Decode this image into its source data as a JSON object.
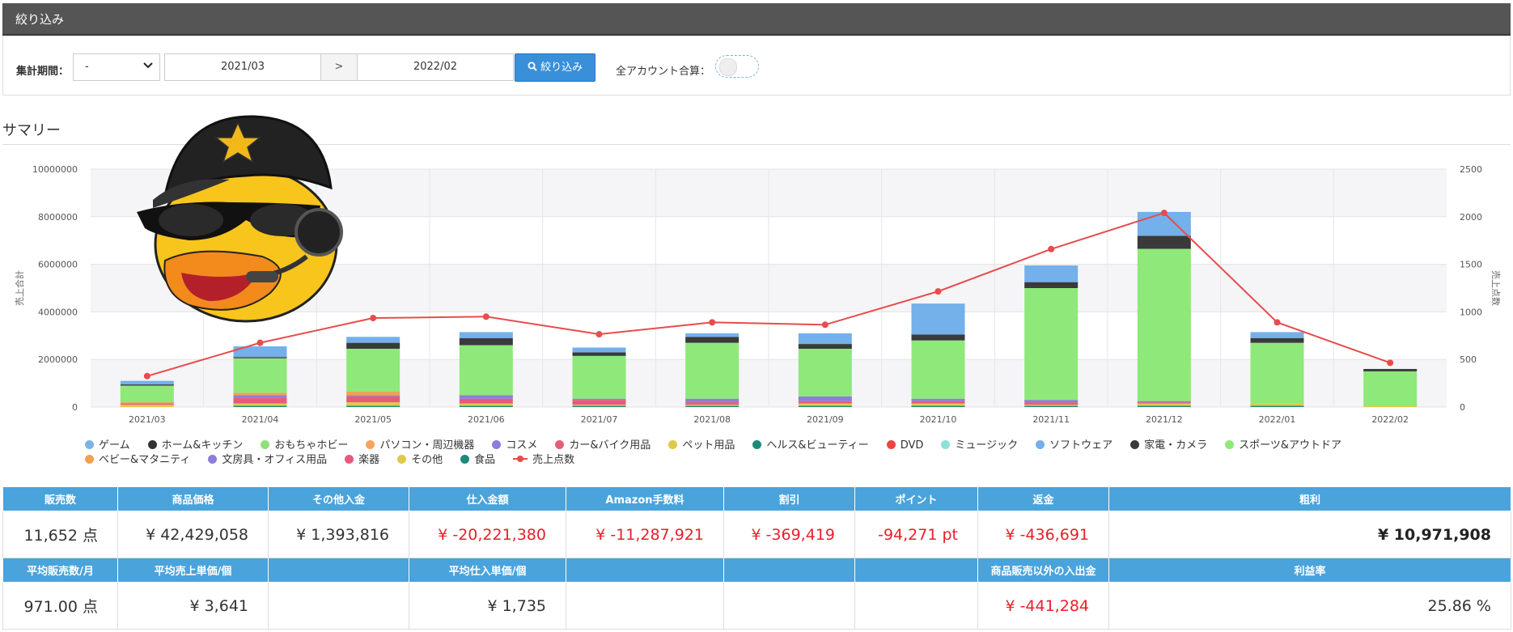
{
  "filter": {
    "title": "絞り込み",
    "period_label": "集計期間：",
    "period_select": "-",
    "date_from": "2021/03",
    "date_arrow": ">",
    "date_to": "2022/02",
    "filter_button": "絞り込み",
    "all_accounts_label": "全アカウント合算："
  },
  "summary": {
    "title": "サマリー"
  },
  "chart_data": {
    "type": "bar",
    "categories": [
      "2021/03",
      "2021/04",
      "2021/05",
      "2021/06",
      "2021/07",
      "2021/08",
      "2021/09",
      "2021/10",
      "2021/11",
      "2021/12",
      "2022/01",
      "2022/02"
    ],
    "y_left_ticks": [
      "10000000",
      "8000000",
      "6000000",
      "4000000",
      "2000000",
      "0"
    ],
    "y_right_ticks": [
      "2500",
      "2000",
      "1500",
      "1000",
      "500",
      "0"
    ],
    "ylabel_left": "売上合計",
    "ylabel_right": "売上点数",
    "ylim_left": [
      0,
      10000000
    ],
    "ylim_right": [
      0,
      2500
    ],
    "grid": true,
    "stacked": true,
    "series": [
      {
        "name": "ゲーム",
        "color": "#7fb3e6",
        "values": [
          0,
          0,
          0,
          0,
          0,
          0,
          0,
          0,
          0,
          0,
          0,
          0
        ]
      },
      {
        "name": "ホーム&キッチン",
        "color": "#333333",
        "values": [
          0,
          0,
          0,
          0,
          0,
          0,
          0,
          0,
          0,
          0,
          0,
          0
        ]
      },
      {
        "name": "おもちゃホビー",
        "color": "#8ee07a",
        "values": [
          0,
          0,
          0,
          0,
          0,
          0,
          0,
          0,
          0,
          0,
          0,
          0
        ]
      },
      {
        "name": "パソコン・周辺機器",
        "color": "#f4a460",
        "values": [
          0,
          0,
          0,
          0,
          0,
          0,
          0,
          0,
          0,
          0,
          0,
          0
        ]
      },
      {
        "name": "コスメ",
        "color": "#8a7fdc",
        "values": [
          0,
          0,
          0,
          0,
          0,
          0,
          0,
          0,
          0,
          0,
          0,
          0
        ]
      },
      {
        "name": "カー&バイク用品",
        "color": "#e85a7a",
        "values": [
          0,
          0,
          0,
          0,
          0,
          0,
          0,
          0,
          0,
          0,
          0,
          0
        ]
      },
      {
        "name": "ペット用品",
        "color": "#e0c94a",
        "values": [
          0,
          0,
          0,
          0,
          0,
          0,
          0,
          0,
          0,
          0,
          0,
          0
        ]
      },
      {
        "name": "ヘルス&ビューティー",
        "color": "#1f8a7a",
        "values": [
          0,
          0,
          0,
          0,
          0,
          0,
          0,
          0,
          0,
          0,
          0,
          0
        ]
      },
      {
        "name": "DVD",
        "color": "#ee4444",
        "values": [
          0,
          0,
          0,
          0,
          0,
          0,
          0,
          0,
          0,
          0,
          0,
          0
        ]
      },
      {
        "name": "ミュージック",
        "color": "#8fe0d8",
        "values": [
          0,
          0,
          0,
          0,
          0,
          0,
          0,
          0,
          0,
          0,
          0,
          0
        ]
      },
      {
        "name": "ソフトウェア",
        "color": "#74b0ea",
        "values": [
          150000,
          450000,
          250000,
          250000,
          200000,
          150000,
          450000,
          1300000,
          700000,
          1000000,
          250000,
          0
        ]
      },
      {
        "name": "家電・カメラ",
        "color": "#3a3a3a",
        "values": [
          50000,
          50000,
          250000,
          300000,
          150000,
          250000,
          200000,
          250000,
          250000,
          550000,
          200000,
          100000
        ]
      },
      {
        "name": "スポーツ&アウトドア",
        "color": "#8ee87a",
        "values": [
          700000,
          1450000,
          1800000,
          2100000,
          1800000,
          2350000,
          2000000,
          2450000,
          4700000,
          6400000,
          2550000,
          1450000
        ]
      },
      {
        "name": "ベビー&マタニティ",
        "color": "#f4a050",
        "values": [
          50000,
          100000,
          150000,
          0,
          0,
          0,
          0,
          0,
          0,
          0,
          0,
          0
        ]
      },
      {
        "name": "文房具・オフィス用品",
        "color": "#8a7fdc",
        "values": [
          0,
          100000,
          50000,
          150000,
          50000,
          150000,
          200000,
          100000,
          100000,
          50000,
          0,
          0
        ]
      },
      {
        "name": "楽器",
        "color": "#e85a7a",
        "values": [
          50000,
          250000,
          250000,
          200000,
          200000,
          100000,
          100000,
          100000,
          100000,
          50000,
          0,
          0
        ]
      },
      {
        "name": "その他",
        "color": "#e0c94a",
        "values": [
          100000,
          100000,
          150000,
          100000,
          50000,
          50000,
          100000,
          100000,
          50000,
          100000,
          100000,
          50000
        ]
      },
      {
        "name": "食品",
        "color": "#1f8a7a",
        "values": [
          0,
          50000,
          50000,
          50000,
          50000,
          50000,
          50000,
          50000,
          50000,
          50000,
          50000,
          0
        ]
      }
    ],
    "line": {
      "name": "売上点数",
      "color": "#e84c4c",
      "values": [
        325,
        675,
        935,
        950,
        765,
        890,
        865,
        1215,
        1660,
        2040,
        890,
        465
      ]
    }
  },
  "stats": {
    "row1_headers": [
      "販売数",
      "商品価格",
      "その他入金",
      "仕入金額",
      "Amazon手数料",
      "割引",
      "ポイント",
      "返金",
      "粗利"
    ],
    "row1_values": [
      "11,652 点",
      "¥ 42,429,058",
      "¥ 1,393,816",
      "¥ -20,221,380",
      "¥ -11,287,921",
      "¥ -369,419",
      "-94,271 pt",
      "¥ -436,691",
      "¥ 10,971,908"
    ],
    "row2_headers": [
      "平均販売数/月",
      "平均売上単価/個",
      "",
      "平均仕入単価/個",
      "",
      "",
      "",
      "商品販売以外の入出金",
      "利益率"
    ],
    "row2_values": [
      "971.00 点",
      "¥ 3,641",
      "",
      "¥ 1,735",
      "",
      "",
      "",
      "¥ -441,284",
      "25.86 %"
    ]
  }
}
